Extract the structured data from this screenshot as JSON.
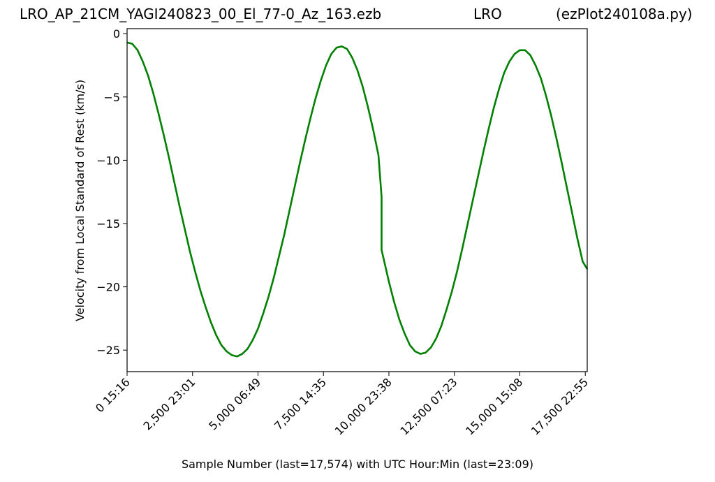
{
  "header": {
    "title_left": "LRO_AP_21CM_YAGI240823_00_El_77-0_Az_163.ezb",
    "title_center": "LRO",
    "title_right": "(ezPlot240108a.py)"
  },
  "chart_data": {
    "type": "line",
    "xlabel": "Sample Number (last=17,574) with UTC Hour:Min (last=23:09)",
    "ylabel": "Velocity from Local Standard of Rest (km/s)",
    "xlim": [
      0,
      17574
    ],
    "ylim": [
      -26.7,
      0.4
    ],
    "grid": false,
    "line_color": "#008000",
    "x_ticks": [
      0,
      2500,
      5000,
      7500,
      10000,
      12500,
      15000,
      17500
    ],
    "x_tick_labels": [
      "0  15:16",
      "2,500  23:01",
      "5,000  06:49",
      "7,500  14:35",
      "10,000  23:38",
      "12,500  07:23",
      "15,000  15:08",
      "17,500  22:55"
    ],
    "y_ticks": [
      0,
      -5,
      -10,
      -15,
      -20,
      -25
    ],
    "y_tick_labels": [
      "0",
      "−5",
      "−10",
      "−15",
      "−20",
      "−25"
    ],
    "series": [
      {
        "x": [
          0,
          200,
          400,
          600,
          800,
          1000,
          1200,
          1400,
          1600,
          1800,
          2000,
          2200,
          2400,
          2600,
          2800,
          3000,
          3200,
          3400,
          3600,
          3800,
          4000,
          4200,
          4400,
          4600,
          4800,
          5000,
          5200,
          5400,
          5600,
          5800,
          6000,
          6200,
          6400,
          6600,
          6800,
          7000,
          7200,
          7400,
          7600,
          7800,
          8000,
          8200,
          8400,
          8600,
          8800,
          9000,
          9200,
          9400,
          9600,
          9720,
          9720,
          9800,
          10000,
          10200,
          10400,
          10600,
          10800,
          11000,
          11200,
          11400,
          11600,
          11800,
          12000,
          12200,
          12400,
          12600,
          12800,
          13000,
          13200,
          13400,
          13600,
          13800,
          14000,
          14200,
          14400,
          14600,
          14800,
          15000,
          15200,
          15400,
          15600,
          15800,
          16000,
          16200,
          16400,
          16600,
          16800,
          17000,
          17200,
          17400,
          17574
        ],
        "y": [
          -0.7,
          -0.8,
          -1.3,
          -2.2,
          -3.3,
          -4.7,
          -6.3,
          -8.0,
          -9.8,
          -11.7,
          -13.6,
          -15.4,
          -17.2,
          -18.8,
          -20.3,
          -21.6,
          -22.8,
          -23.8,
          -24.6,
          -25.1,
          -25.4,
          -25.5,
          -25.3,
          -24.9,
          -24.2,
          -23.3,
          -22.1,
          -20.8,
          -19.3,
          -17.6,
          -15.9,
          -14.0,
          -12.1,
          -10.2,
          -8.4,
          -6.7,
          -5.1,
          -3.7,
          -2.5,
          -1.6,
          -1.1,
          -1.0,
          -1.2,
          -1.9,
          -2.9,
          -4.2,
          -5.8,
          -7.6,
          -9.6,
          -12.9,
          -17.1,
          -17.8,
          -19.6,
          -21.2,
          -22.6,
          -23.7,
          -24.6,
          -25.1,
          -25.3,
          -25.2,
          -24.8,
          -24.1,
          -23.1,
          -21.8,
          -20.4,
          -18.8,
          -17.0,
          -15.1,
          -13.2,
          -11.3,
          -9.4,
          -7.6,
          -5.9,
          -4.4,
          -3.1,
          -2.2,
          -1.6,
          -1.3,
          -1.3,
          -1.7,
          -2.5,
          -3.5,
          -4.9,
          -6.5,
          -8.3,
          -10.2,
          -12.2,
          -14.2,
          -16.2,
          -18.0,
          -18.6
        ]
      }
    ]
  }
}
